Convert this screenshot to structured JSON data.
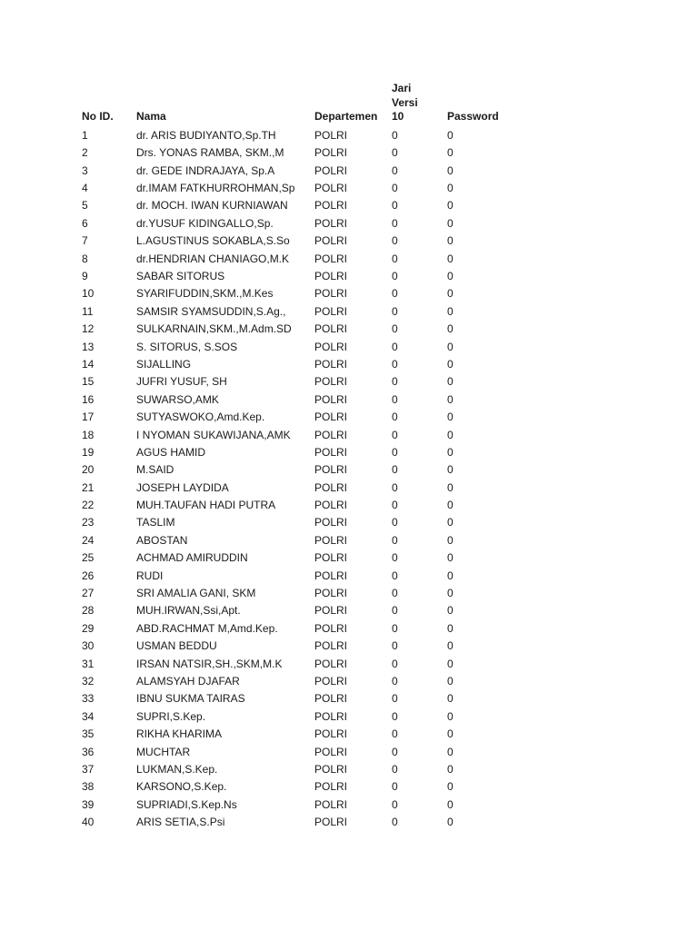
{
  "headers": {
    "no": "No ID.",
    "nama": "Nama",
    "departemen": "Departemen",
    "jari_l1": "Jari",
    "jari_l2": "Versi",
    "jari_l3": "10",
    "password": "Password"
  },
  "rows": [
    {
      "no": "1",
      "nama": "dr. ARIS BUDIYANTO,Sp.TH",
      "dept": "POLRI",
      "jari": "0",
      "password": "0"
    },
    {
      "no": "2",
      "nama": "Drs. YONAS RAMBA, SKM.,M",
      "dept": "POLRI",
      "jari": "0",
      "password": "0"
    },
    {
      "no": "3",
      "nama": "dr. GEDE INDRAJAYA, Sp.A",
      "dept": "POLRI",
      "jari": "0",
      "password": "0"
    },
    {
      "no": "4",
      "nama": "dr.IMAM FATKHURROHMAN,Sp",
      "dept": "POLRI",
      "jari": "0",
      "password": "0"
    },
    {
      "no": "5",
      "nama": "dr. MOCH. IWAN KURNIAWAN",
      "dept": "POLRI",
      "jari": "0",
      "password": "0"
    },
    {
      "no": "6",
      "nama": "dr.YUSUF  KIDINGALLO,Sp.",
      "dept": "POLRI",
      "jari": "0",
      "password": "0"
    },
    {
      "no": "7",
      "nama": "L.AGUSTINUS SOKABLA,S.So",
      "dept": "POLRI",
      "jari": "0",
      "password": "0"
    },
    {
      "no": "8",
      "nama": "dr.HENDRIAN CHANIAGO,M.K",
      "dept": "POLRI",
      "jari": "0",
      "password": "0"
    },
    {
      "no": "9",
      "nama": "SABAR SITORUS",
      "dept": "POLRI",
      "jari": "0",
      "password": "0"
    },
    {
      "no": "10",
      "nama": "SYARIFUDDIN,SKM.,M.Kes",
      "dept": "POLRI",
      "jari": "0",
      "password": "0"
    },
    {
      "no": "11",
      "nama": "SAMSIR SYAMSUDDIN,S.Ag.,",
      "dept": "POLRI",
      "jari": "0",
      "password": "0"
    },
    {
      "no": "12",
      "nama": "SULKARNAIN,SKM.,M.Adm.SD",
      "dept": "POLRI",
      "jari": "0",
      "password": "0"
    },
    {
      "no": "13",
      "nama": "S. SITORUS, S.SOS",
      "dept": "POLRI",
      "jari": "0",
      "password": "0"
    },
    {
      "no": "14",
      "nama": "SIJALLING",
      "dept": "POLRI",
      "jari": "0",
      "password": "0"
    },
    {
      "no": "15",
      "nama": "JUFRI YUSUF, SH",
      "dept": "POLRI",
      "jari": "0",
      "password": "0"
    },
    {
      "no": "16",
      "nama": "SUWARSO,AMK",
      "dept": "POLRI",
      "jari": "0",
      "password": "0"
    },
    {
      "no": "17",
      "nama": "SUTYASWOKO,Amd.Kep.",
      "dept": "POLRI",
      "jari": "0",
      "password": "0"
    },
    {
      "no": "18",
      "nama": "I NYOMAN SUKAWIJANA,AMK",
      "dept": "POLRI",
      "jari": "0",
      "password": "0"
    },
    {
      "no": "19",
      "nama": "AGUS HAMID",
      "dept": "POLRI",
      "jari": "0",
      "password": "0"
    },
    {
      "no": "20",
      "nama": "M.SAID",
      "dept": "POLRI",
      "jari": "0",
      "password": "0"
    },
    {
      "no": "21",
      "nama": "JOSEPH LAYDIDA",
      "dept": "POLRI",
      "jari": "0",
      "password": "0"
    },
    {
      "no": "22",
      "nama": "MUH.TAUFAN HADI PUTRA",
      "dept": "POLRI",
      "jari": "0",
      "password": "0"
    },
    {
      "no": "23",
      "nama": "TASLIM",
      "dept": "POLRI",
      "jari": "0",
      "password": "0"
    },
    {
      "no": "24",
      "nama": "ABOSTAN",
      "dept": "POLRI",
      "jari": "0",
      "password": "0"
    },
    {
      "no": "25",
      "nama": "ACHMAD AMIRUDDIN",
      "dept": "POLRI",
      "jari": "0",
      "password": "0"
    },
    {
      "no": "26",
      "nama": "RUDI",
      "dept": "POLRI",
      "jari": "0",
      "password": "0"
    },
    {
      "no": "27",
      "nama": "SRI AMALIA GANI, SKM",
      "dept": "POLRI",
      "jari": "0",
      "password": "0"
    },
    {
      "no": "28",
      "nama": "MUH.IRWAN,Ssi,Apt.",
      "dept": "POLRI",
      "jari": "0",
      "password": "0"
    },
    {
      "no": "29",
      "nama": "ABD.RACHMAT M,Amd.Kep.",
      "dept": "POLRI",
      "jari": "0",
      "password": "0"
    },
    {
      "no": "30",
      "nama": "USMAN BEDDU",
      "dept": "POLRI",
      "jari": "0",
      "password": "0"
    },
    {
      "no": "31",
      "nama": "IRSAN NATSIR,SH.,SKM,M.K",
      "dept": "POLRI",
      "jari": "0",
      "password": "0"
    },
    {
      "no": "32",
      "nama": "ALAMSYAH DJAFAR",
      "dept": "POLRI",
      "jari": "0",
      "password": "0"
    },
    {
      "no": "33",
      "nama": "IBNU SUKMA TAIRAS",
      "dept": "POLRI",
      "jari": "0",
      "password": "0"
    },
    {
      "no": "34",
      "nama": "SUPRI,S.Kep.",
      "dept": "POLRI",
      "jari": "0",
      "password": "0"
    },
    {
      "no": "35",
      "nama": "RIKHA KHARIMA",
      "dept": "POLRI",
      "jari": "0",
      "password": "0"
    },
    {
      "no": "36",
      "nama": "MUCHTAR",
      "dept": "POLRI",
      "jari": "0",
      "password": "0"
    },
    {
      "no": "37",
      "nama": "LUKMAN,S.Kep.",
      "dept": "POLRI",
      "jari": "0",
      "password": "0"
    },
    {
      "no": "38",
      "nama": "KARSONO,S.Kep.",
      "dept": "POLRI",
      "jari": "0",
      "password": "0"
    },
    {
      "no": "39",
      "nama": "SUPRIADI,S.Kep.Ns",
      "dept": "POLRI",
      "jari": "0",
      "password": "0"
    },
    {
      "no": "40",
      "nama": "ARIS SETIA,S.Psi",
      "dept": "POLRI",
      "jari": "0",
      "password": "0"
    }
  ]
}
